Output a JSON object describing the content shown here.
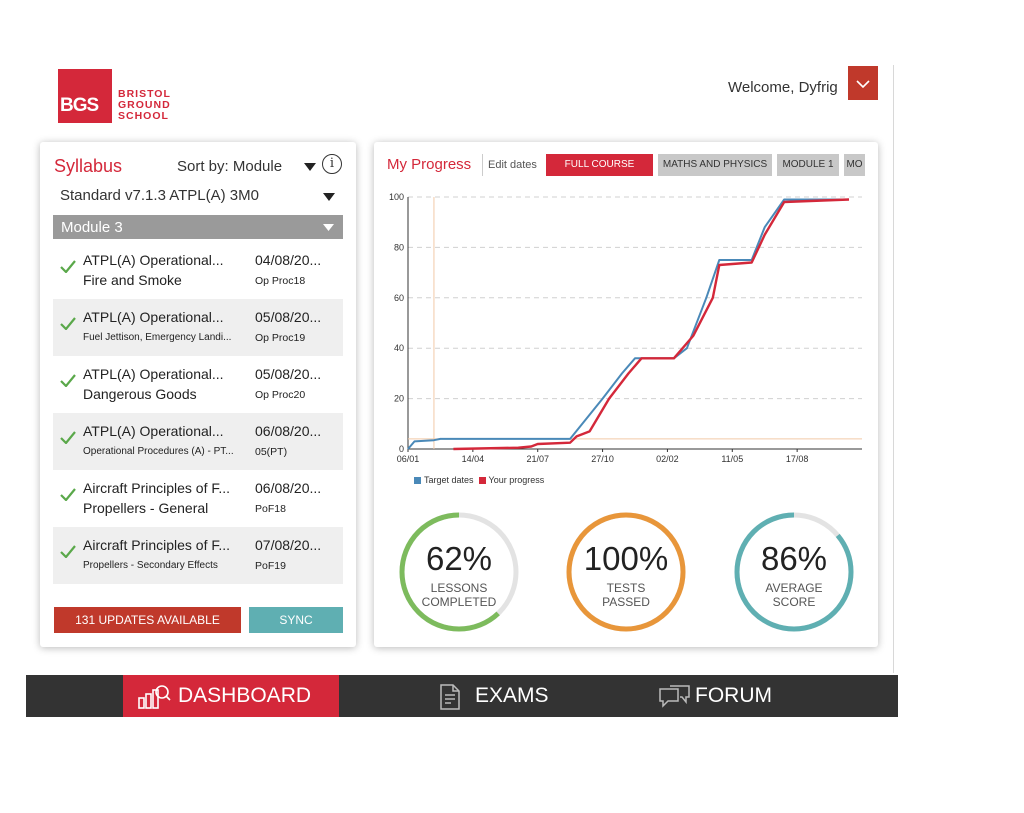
{
  "header": {
    "logo": {
      "abbr": "BGS",
      "line1": "BRISTOL",
      "line2": "GROUND",
      "line3": "SCHOOL"
    },
    "welcome": "Welcome, Dyfrig",
    "user_menu_icon": "chevron-down-icon"
  },
  "syllabus": {
    "title": "Syllabus",
    "sort_label": "Sort by: Module",
    "standard": "Standard v7.1.3 ATPL(A) 3M0",
    "module": "Module 3",
    "items": [
      {
        "title": "ATPL(A) Operational...",
        "subtitle": "Fire and Smoke",
        "date": "04/08/20...",
        "code": "Op Proc18",
        "completed": true
      },
      {
        "title": "ATPL(A) Operational...",
        "subtitle": "Fuel Jettison, Emergency Landi...",
        "date": "05/08/20...",
        "code": "Op Proc19",
        "completed": true
      },
      {
        "title": "ATPL(A) Operational...",
        "subtitle": "Dangerous Goods",
        "date": "05/08/20...",
        "code": "Op Proc20",
        "completed": true
      },
      {
        "title": "ATPL(A) Operational...",
        "subtitle": "Operational Procedures (A) - PT...",
        "date": "06/08/20...",
        "code": "05(PT)",
        "completed": true
      },
      {
        "title": "Aircraft Principles of F...",
        "subtitle": "Propellers - General",
        "date": "06/08/20...",
        "code": "PoF18",
        "completed": true
      },
      {
        "title": "Aircraft Principles of F...",
        "subtitle": "Propellers - Secondary Effects",
        "date": "07/08/20...",
        "code": "PoF19",
        "completed": true
      }
    ],
    "updates_button": "131 UPDATES AVAILABLE",
    "sync_button": "SYNC"
  },
  "progress": {
    "title": "My Progress",
    "edit_dates": "Edit dates",
    "tabs": [
      {
        "label": "FULL COURSE",
        "active": true
      },
      {
        "label": "MATHS AND PHYSICS",
        "active": false
      },
      {
        "label": "MODULE 1",
        "active": false
      },
      {
        "label": "MO",
        "active": false
      }
    ],
    "gauges": [
      {
        "value": 62,
        "display": "62%",
        "label_line1": "LESSONS",
        "label_line2": "COMPLETED",
        "color": "#7dbb5d"
      },
      {
        "value": 100,
        "display": "100%",
        "label_line1": "TESTS",
        "label_line2": "PASSED",
        "color": "#e8963a"
      },
      {
        "value": 86,
        "display": "86%",
        "label_line1": "AVERAGE",
        "label_line2": "SCORE",
        "color": "#5fafb2"
      }
    ]
  },
  "chart_data": {
    "type": "line",
    "x_ticks": [
      "06/01",
      "14/04",
      "21/07",
      "27/10",
      "02/02",
      "11/05",
      "17/08"
    ],
    "x_range": [
      0,
      7
    ],
    "ylim": [
      0,
      100
    ],
    "y_ticks": [
      0,
      20,
      40,
      60,
      80,
      100
    ],
    "grid": true,
    "legend_position": "bottom-left",
    "series": [
      {
        "name": "Target dates",
        "color": "#4a89b8",
        "points": [
          [
            0,
            0
          ],
          [
            0.1,
            3
          ],
          [
            0.4,
            3.5
          ],
          [
            0.5,
            4
          ],
          [
            2.5,
            4
          ],
          [
            3.0,
            20
          ],
          [
            3.3,
            30
          ],
          [
            3.5,
            36
          ],
          [
            4.1,
            36
          ],
          [
            4.3,
            40
          ],
          [
            4.6,
            60
          ],
          [
            4.8,
            75
          ],
          [
            5.3,
            75
          ],
          [
            5.5,
            88
          ],
          [
            5.8,
            99
          ],
          [
            6.8,
            99
          ]
        ]
      },
      {
        "name": "Your progress",
        "color": "#d4283a",
        "points": [
          [
            0.7,
            0
          ],
          [
            1.7,
            0.5
          ],
          [
            1.9,
            1
          ],
          [
            2.0,
            2
          ],
          [
            2.5,
            2.5
          ],
          [
            2.6,
            5
          ],
          [
            2.8,
            7
          ],
          [
            3.1,
            20
          ],
          [
            3.4,
            30
          ],
          [
            3.6,
            36
          ],
          [
            4.1,
            36
          ],
          [
            4.4,
            45
          ],
          [
            4.7,
            60
          ],
          [
            4.8,
            73
          ],
          [
            5.3,
            74
          ],
          [
            5.5,
            85
          ],
          [
            5.8,
            98
          ],
          [
            6.8,
            99
          ]
        ]
      }
    ],
    "annotations": {
      "vertical_marker_x": 0.4,
      "horizontal_marker_y": 4
    }
  },
  "nav": {
    "items": [
      {
        "label": "DASHBOARD",
        "icon": "dashboard-icon",
        "active": true
      },
      {
        "label": "EXAMS",
        "icon": "exams-document-icon",
        "active": false
      },
      {
        "label": "FORUM",
        "icon": "forum-chat-icon",
        "active": false
      }
    ]
  }
}
